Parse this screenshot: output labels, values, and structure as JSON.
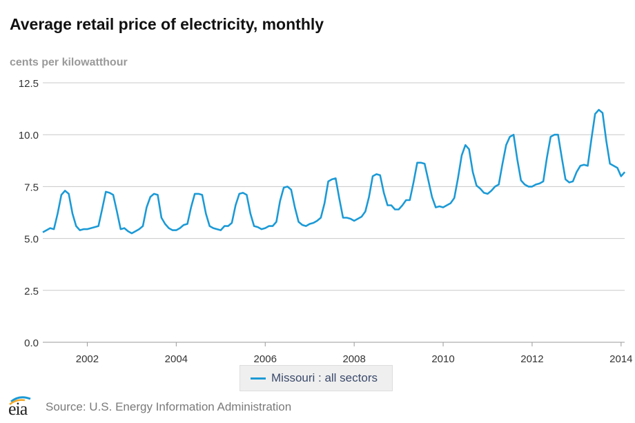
{
  "header": {
    "title": "Average retail price of electricity, monthly",
    "units": "cents per kilowatthour"
  },
  "legend": {
    "label": "Missouri : all sectors"
  },
  "footer": {
    "source": "Source: U.S. Energy Information Administration",
    "logo_text": "eia"
  },
  "colors": {
    "series": "#1b9ad6",
    "grid": "#c8c8c8",
    "axis_text": "#333333"
  },
  "chart_data": {
    "type": "line",
    "title": "Average retail price of electricity, monthly",
    "ylabel": "cents per kilowatthour",
    "xlabel": "",
    "ylim": [
      0,
      12.5
    ],
    "xlim": [
      2001.0,
      2014.08
    ],
    "yticks": [
      "0.0",
      "2.5",
      "5.0",
      "7.5",
      "10.0",
      "12.5"
    ],
    "xticks": [
      "2002",
      "2004",
      "2006",
      "2008",
      "2010",
      "2012",
      "2014"
    ],
    "grid": true,
    "legend_position": "bottom",
    "series": [
      {
        "name": "Missouri : all sectors",
        "start": "2001-01",
        "frequency": "monthly",
        "values": [
          5.3,
          5.4,
          5.5,
          5.45,
          6.2,
          7.1,
          7.3,
          7.15,
          6.2,
          5.6,
          5.4,
          5.45,
          5.45,
          5.5,
          5.55,
          5.6,
          6.4,
          7.25,
          7.2,
          7.1,
          6.3,
          5.45,
          5.5,
          5.35,
          5.25,
          5.35,
          5.45,
          5.6,
          6.5,
          7.0,
          7.15,
          7.1,
          6.0,
          5.7,
          5.5,
          5.4,
          5.4,
          5.5,
          5.65,
          5.7,
          6.5,
          7.15,
          7.15,
          7.1,
          6.2,
          5.6,
          5.5,
          5.45,
          5.4,
          5.6,
          5.6,
          5.75,
          6.6,
          7.15,
          7.2,
          7.1,
          6.2,
          5.6,
          5.55,
          5.45,
          5.5,
          5.6,
          5.6,
          5.8,
          6.8,
          7.45,
          7.5,
          7.35,
          6.5,
          5.8,
          5.65,
          5.6,
          5.7,
          5.75,
          5.85,
          6.0,
          6.7,
          7.75,
          7.85,
          7.9,
          6.9,
          6.0,
          6.0,
          5.95,
          5.85,
          5.95,
          6.05,
          6.3,
          7.0,
          8.0,
          8.1,
          8.05,
          7.2,
          6.6,
          6.6,
          6.4,
          6.4,
          6.6,
          6.85,
          6.85,
          7.7,
          8.65,
          8.65,
          8.6,
          7.8,
          7.0,
          6.5,
          6.55,
          6.5,
          6.6,
          6.7,
          6.95,
          7.9,
          9.0,
          9.5,
          9.3,
          8.2,
          7.55,
          7.4,
          7.2,
          7.15,
          7.3,
          7.5,
          7.6,
          8.6,
          9.5,
          9.9,
          10.0,
          8.8,
          7.8,
          7.6,
          7.5,
          7.5,
          7.6,
          7.65,
          7.75,
          8.9,
          9.9,
          10.0,
          10.0,
          8.9,
          7.85,
          7.7,
          7.75,
          8.2,
          8.5,
          8.55,
          8.5,
          9.8,
          11.0,
          11.2,
          11.05,
          9.7,
          8.6,
          8.5,
          8.4,
          8.0,
          8.2
        ]
      }
    ]
  }
}
